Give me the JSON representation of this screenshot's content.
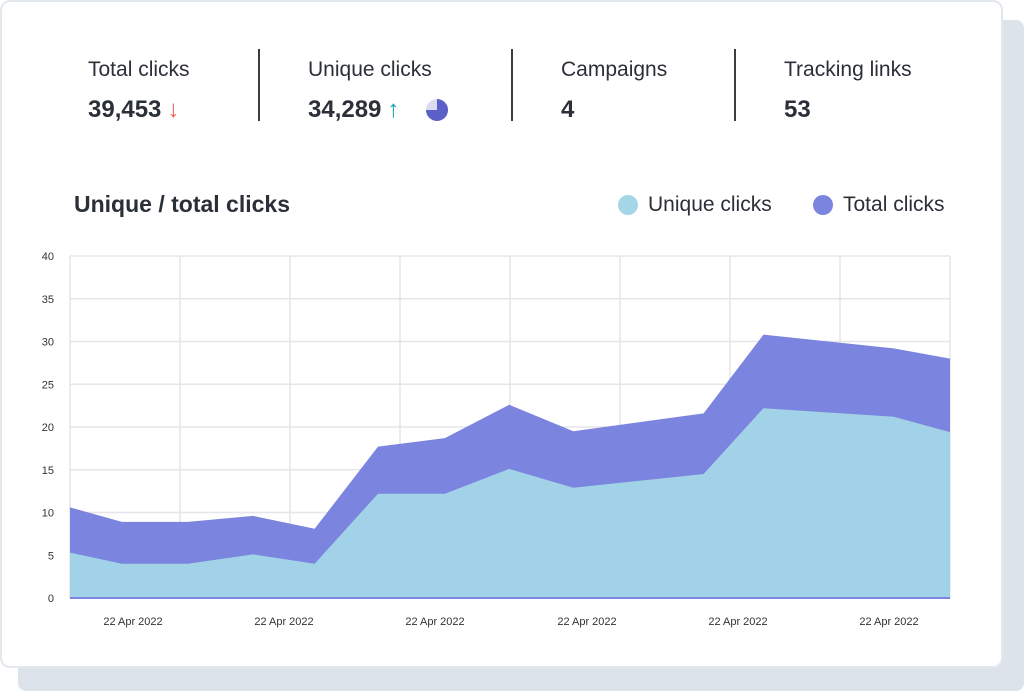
{
  "stats": [
    {
      "label": "Total clicks",
      "value": "39,453",
      "trend": "down",
      "trend_glyph": "↓",
      "trend_color": "#ef5a5a"
    },
    {
      "label": "Unique clicks",
      "value": "34,289",
      "trend": "up",
      "trend_glyph": "↑",
      "trend_color": "#13a3a8",
      "pie_fraction": 0.75
    },
    {
      "label": "Campaigns",
      "value": "4"
    },
    {
      "label": "Tracking links",
      "value": "53"
    }
  ],
  "chart_data": {
    "type": "area",
    "title": "Unique / total clicks",
    "legend_position": "top-right",
    "grid": true,
    "ylim": [
      0,
      40
    ],
    "yticks": [
      "0",
      "5",
      "10",
      "15",
      "20",
      "25",
      "30",
      "35",
      "40"
    ],
    "xtick_labels": [
      "22 Apr 2022",
      "22 Apr 2022",
      "22 Apr 2022",
      "22 Apr 2022",
      "22 Apr 2022",
      "22 Apr 2022"
    ],
    "series": [
      {
        "name": "Unique clicks",
        "color": "#a4d6e8",
        "values": [
          5.3,
          4.0,
          4.0,
          5.1,
          4.0,
          12.2,
          12.2,
          15.1,
          12.9,
          14.5,
          22.2,
          21.2,
          19.4
        ]
      },
      {
        "name": "Total clicks",
        "color": "#7b84de",
        "values": [
          10.6,
          8.9,
          8.9,
          9.6,
          8.1,
          17.7,
          18.7,
          22.6,
          19.5,
          21.6,
          30.8,
          29.2,
          28.0
        ]
      }
    ]
  }
}
